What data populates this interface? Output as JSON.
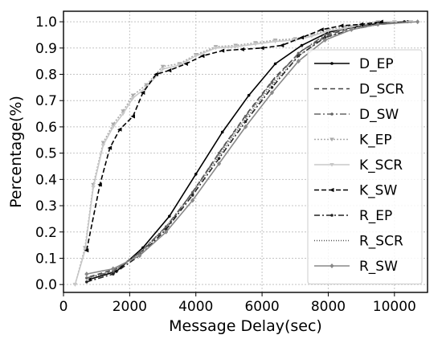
{
  "chart_data": {
    "type": "line",
    "title": "",
    "xlabel": "Message Delay(sec)",
    "ylabel": "Percentage(%)",
    "xlim": [
      0,
      11000
    ],
    "ylim": [
      -0.03,
      1.04
    ],
    "xticks": [
      0,
      2000,
      4000,
      6000,
      8000,
      10000
    ],
    "yticks": [
      0.0,
      0.1,
      0.2,
      0.3,
      0.4,
      0.5,
      0.6,
      0.7,
      0.8,
      0.9,
      1.0
    ],
    "grid": true,
    "legend_position": "right",
    "series": [
      {
        "name": "D_EP",
        "color": "#000000",
        "dash": "",
        "marker": "dot",
        "x": [
          800,
          1600,
          2400,
          3200,
          4000,
          4800,
          5600,
          6400,
          7200,
          8000,
          8800,
          9600,
          10400
        ],
        "y": [
          0.02,
          0.05,
          0.14,
          0.26,
          0.42,
          0.58,
          0.72,
          0.84,
          0.91,
          0.96,
          0.98,
          0.995,
          1.0
        ]
      },
      {
        "name": "D_SCR",
        "color": "#444444",
        "dash": "6,4",
        "marker": "none",
        "x": [
          800,
          1600,
          2400,
          3200,
          4000,
          4800,
          5600,
          6400,
          7200,
          8000,
          8800,
          9600,
          10400
        ],
        "y": [
          0.03,
          0.06,
          0.13,
          0.23,
          0.37,
          0.52,
          0.66,
          0.79,
          0.89,
          0.95,
          0.98,
          0.99,
          1.0
        ]
      },
      {
        "name": "D_SW",
        "color": "#666666",
        "dash": "8,3,2,3",
        "marker": "dot",
        "x": [
          700,
          1500,
          2300,
          3100,
          3900,
          4700,
          5500,
          6300,
          7100,
          7900,
          8700,
          9500,
          10300
        ],
        "y": [
          0.025,
          0.05,
          0.12,
          0.22,
          0.35,
          0.5,
          0.64,
          0.77,
          0.88,
          0.95,
          0.98,
          0.99,
          1.0
        ]
      },
      {
        "name": "K_EP",
        "color": "#aaaaaa",
        "dash": "2,2",
        "marker": "triangle",
        "x": [
          350,
          650,
          900,
          1200,
          1500,
          1800,
          2100,
          2500,
          3000,
          3500,
          4000,
          4600,
          5200,
          5800,
          6400,
          7000,
          7500,
          8000,
          8500,
          9000,
          9500,
          10000,
          10500
        ],
        "y": [
          0.0,
          0.14,
          0.38,
          0.54,
          0.61,
          0.66,
          0.72,
          0.76,
          0.83,
          0.84,
          0.875,
          0.905,
          0.91,
          0.92,
          0.93,
          0.935,
          0.95,
          0.97,
          0.98,
          0.99,
          1.0,
          1.0,
          1.0
        ]
      },
      {
        "name": "K_SCR",
        "color": "#c8c8c8",
        "dash": "",
        "marker": "triangle",
        "x": [
          350,
          650,
          900,
          1200,
          1500,
          1800,
          2100,
          2500,
          3000,
          3500,
          4000,
          4600,
          5200,
          5800,
          6400,
          7000,
          7500,
          8000,
          8500,
          9000,
          9500,
          10000,
          10500
        ],
        "y": [
          0.0,
          0.13,
          0.37,
          0.53,
          0.6,
          0.65,
          0.71,
          0.75,
          0.82,
          0.835,
          0.87,
          0.9,
          0.905,
          0.915,
          0.925,
          0.93,
          0.945,
          0.965,
          0.975,
          0.99,
          1.0,
          1.0,
          1.0
        ]
      },
      {
        "name": "K_SW",
        "color": "#000000",
        "dash": "6,3",
        "marker": "triangle-left",
        "x": [
          700,
          1100,
          1400,
          1700,
          2100,
          2400,
          2800,
          3200,
          3700,
          4200,
          4800,
          5400,
          6000,
          6600,
          7200,
          7800,
          8400,
          9000,
          9600
        ],
        "y": [
          0.13,
          0.38,
          0.52,
          0.59,
          0.64,
          0.73,
          0.8,
          0.815,
          0.84,
          0.87,
          0.89,
          0.895,
          0.9,
          0.91,
          0.94,
          0.97,
          0.985,
          0.99,
          1.0
        ]
      },
      {
        "name": "R_EP",
        "color": "#222222",
        "dash": "7,3,2,3",
        "marker": "dot",
        "x": [
          700,
          1500,
          2300,
          3100,
          3900,
          4700,
          5500,
          6300,
          7100,
          7900,
          8700,
          9500,
          10300
        ],
        "y": [
          0.01,
          0.04,
          0.11,
          0.21,
          0.34,
          0.48,
          0.62,
          0.75,
          0.87,
          0.94,
          0.97,
          0.99,
          1.0
        ]
      },
      {
        "name": "R_SCR",
        "color": "#555555",
        "dash": "1,2",
        "marker": "none",
        "x": [
          700,
          1500,
          2300,
          3100,
          3900,
          4700,
          5500,
          6300,
          7100,
          7900,
          8700,
          9500,
          10300
        ],
        "y": [
          0.02,
          0.05,
          0.12,
          0.22,
          0.35,
          0.49,
          0.63,
          0.76,
          0.87,
          0.94,
          0.97,
          0.99,
          1.0
        ]
      },
      {
        "name": "R_SW",
        "color": "#888888",
        "dash": "",
        "marker": "diamond",
        "x": [
          700,
          1500,
          2300,
          3100,
          3900,
          4700,
          5500,
          6300,
          7100,
          7900,
          8700,
          9500,
          10700
        ],
        "y": [
          0.04,
          0.06,
          0.11,
          0.2,
          0.32,
          0.46,
          0.6,
          0.73,
          0.85,
          0.93,
          0.97,
          0.99,
          1.0
        ]
      }
    ]
  }
}
